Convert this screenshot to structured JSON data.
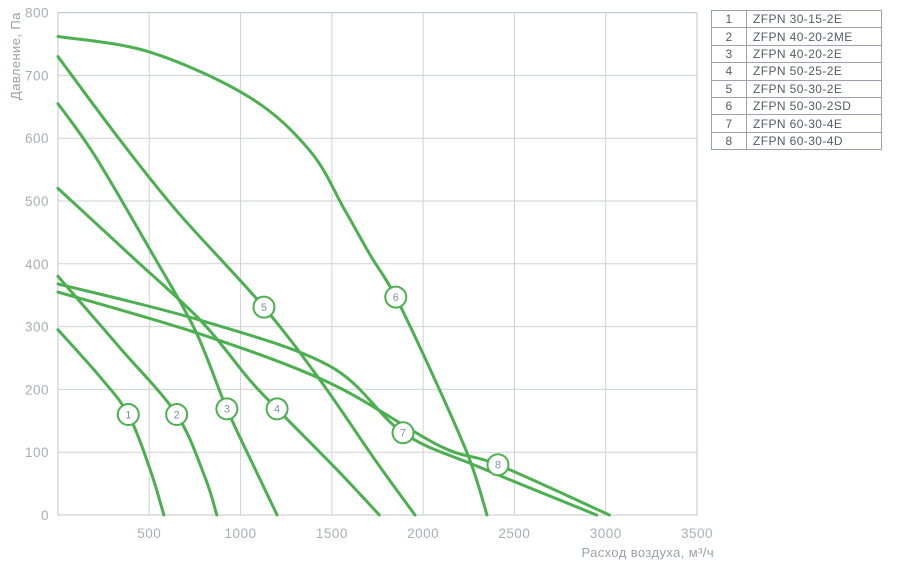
{
  "axes": {
    "x_title": "Расход воздуха, м³/ч",
    "y_title": "Давление, Па",
    "x_ticks": [
      500,
      1000,
      1500,
      2000,
      2500,
      3000,
      3500
    ],
    "y_ticks": [
      0,
      100,
      200,
      300,
      400,
      500,
      600,
      700,
      800
    ]
  },
  "colors": {
    "curve_green": "#4CAF50",
    "grid_gray": "#cfd2d4",
    "tick_gray": "#a9aeb5",
    "legend_text": "#565b63",
    "marker_number": "#8590a0"
  },
  "chart_data": {
    "type": "line",
    "title": "",
    "xlabel": "Расход воздуха, м³/ч",
    "ylabel": "Давление, Па",
    "xlim": [
      0,
      3500
    ],
    "ylim": [
      0,
      800
    ],
    "grid": true,
    "legend_position": "top-right",
    "series": [
      {
        "id": "1",
        "name": "ZFPN 30-15-2E",
        "marker_at": [
          385,
          160
        ],
        "points": [
          [
            0,
            295
          ],
          [
            230,
            220
          ],
          [
            385,
            160
          ],
          [
            505,
            72
          ],
          [
            580,
            0
          ]
        ]
      },
      {
        "id": "2",
        "name": "ZFPN 40-20-2ME",
        "marker_at": [
          650,
          160
        ],
        "points": [
          [
            0,
            380
          ],
          [
            340,
            266
          ],
          [
            650,
            160
          ],
          [
            805,
            60
          ],
          [
            870,
            0
          ]
        ]
      },
      {
        "id": "3",
        "name": "ZFPN 40-20-2E",
        "marker_at": [
          925,
          169
        ],
        "points": [
          [
            0,
            655
          ],
          [
            200,
            573
          ],
          [
            505,
            422
          ],
          [
            750,
            295
          ],
          [
            925,
            169
          ],
          [
            1095,
            64
          ],
          [
            1200,
            0
          ]
        ]
      },
      {
        "id": "4",
        "name": "ZFPN 50-25-2E",
        "marker_at": [
          1200,
          169
        ],
        "points": [
          [
            0,
            520
          ],
          [
            395,
            414
          ],
          [
            780,
            310
          ],
          [
            1050,
            215
          ],
          [
            1200,
            169
          ],
          [
            1545,
            67
          ],
          [
            1760,
            0
          ]
        ]
      },
      {
        "id": "5",
        "name": "ZFPN 50-30-2E",
        "marker_at": [
          1128,
          331
        ],
        "points": [
          [
            0,
            730
          ],
          [
            340,
            597
          ],
          [
            657,
            482
          ],
          [
            1128,
            331
          ],
          [
            1435,
            215
          ],
          [
            1736,
            88
          ],
          [
            1955,
            0
          ]
        ]
      },
      {
        "id": "6",
        "name": "ZFPN 50-30-2SD",
        "marker_at": [
          1850,
          347
        ],
        "points": [
          [
            0,
            762
          ],
          [
            505,
            737
          ],
          [
            1050,
            665
          ],
          [
            1380,
            580
          ],
          [
            1570,
            486
          ],
          [
            1710,
            414
          ],
          [
            1850,
            347
          ],
          [
            2090,
            199
          ],
          [
            2255,
            88
          ],
          [
            2350,
            0
          ]
        ]
      },
      {
        "id": "7",
        "name": "ZFPN 60-30-4E",
        "marker_at": [
          1890,
          131
        ],
        "points": [
          [
            0,
            368
          ],
          [
            780,
            310
          ],
          [
            1490,
            237
          ],
          [
            1890,
            131
          ],
          [
            2310,
            76
          ],
          [
            2950,
            0
          ]
        ]
      },
      {
        "id": "8",
        "name": "ZFPN 60-30-4D",
        "marker_at": [
          2410,
          80
        ],
        "points": [
          [
            0,
            355
          ],
          [
            780,
            288
          ],
          [
            1490,
            210
          ],
          [
            2090,
            110
          ],
          [
            2410,
            80
          ],
          [
            3020,
            0
          ]
        ]
      }
    ]
  }
}
